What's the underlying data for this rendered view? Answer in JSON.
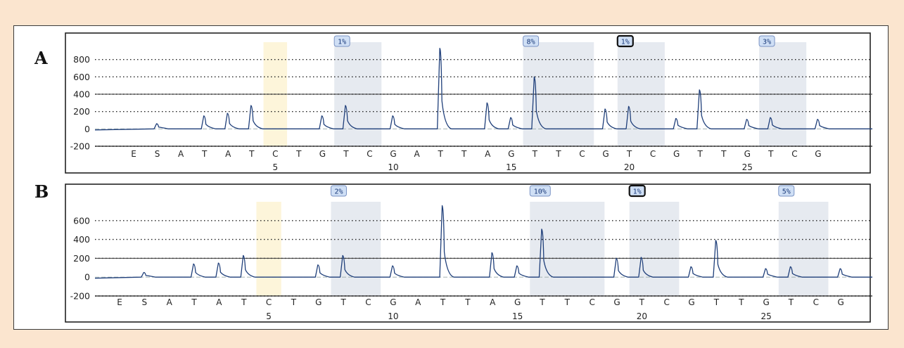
{
  "colors": {
    "page_bg": "#fbe5cf",
    "trace": "#1f3f7a",
    "gray_shade": "#e6eaf0",
    "yellow_shade": "#fdf5da",
    "badge_fill": "#cfdff5",
    "badge_border": "#7a93c4"
  },
  "panels": [
    {
      "letter": "A",
      "dispensation": [
        "E",
        "S",
        "A",
        "T",
        "A",
        "T",
        "C",
        "T",
        "G",
        "T",
        "C",
        "G",
        "A",
        "T",
        "T",
        "A",
        "G",
        "T",
        "T",
        "C",
        "G",
        "T",
        "C",
        "G",
        "T",
        "T",
        "G",
        "T",
        "C",
        "G"
      ],
      "position_labels": [
        {
          "pos": 5,
          "label": "5"
        },
        {
          "pos": 10,
          "label": "10"
        },
        {
          "pos": 15,
          "label": "15"
        },
        {
          "pos": 20,
          "label": "20"
        },
        {
          "pos": 25,
          "label": "25"
        }
      ],
      "yellow_region": {
        "start": 6,
        "end": 6
      },
      "cpg_regions": [
        {
          "start": 9,
          "end": 10,
          "badge": "1%",
          "emphasized": false
        },
        {
          "start": 17,
          "end": 19,
          "badge": "8%",
          "emphasized": false
        },
        {
          "start": 21,
          "end": 22,
          "badge": "1%",
          "emphasized": true
        },
        {
          "start": 27,
          "end": 28,
          "badge": "3%",
          "emphasized": false
        }
      ],
      "chart_data": {
        "type": "line",
        "title": "",
        "xlabel": "",
        "ylabel": "",
        "ylim": [
          -200,
          1000
        ],
        "yticks": [
          -200,
          0,
          200,
          400,
          600,
          800
        ],
        "dotted_grid": [
          -200,
          200,
          400,
          600,
          800
        ],
        "solid_grid": [
          400
        ],
        "peaks": [
          {
            "x": 1,
            "y": 60
          },
          {
            "x": 3,
            "y": 150
          },
          {
            "x": 4,
            "y": 180
          },
          {
            "x": 5,
            "y": 270
          },
          {
            "x": 8,
            "y": 150
          },
          {
            "x": 9,
            "y": 270
          },
          {
            "x": 11,
            "y": 150
          },
          {
            "x": 13,
            "y": 930
          },
          {
            "x": 15,
            "y": 300
          },
          {
            "x": 16,
            "y": 130
          },
          {
            "x": 17,
            "y": 600
          },
          {
            "x": 20,
            "y": 230
          },
          {
            "x": 21,
            "y": 260
          },
          {
            "x": 23,
            "y": 120
          },
          {
            "x": 24,
            "y": 450
          },
          {
            "x": 26,
            "y": 110
          },
          {
            "x": 27,
            "y": 130
          },
          {
            "x": 29,
            "y": 110
          }
        ]
      }
    },
    {
      "letter": "B",
      "dispensation": [
        "E",
        "S",
        "A",
        "T",
        "A",
        "T",
        "C",
        "T",
        "G",
        "T",
        "C",
        "G",
        "A",
        "T",
        "T",
        "A",
        "G",
        "T",
        "T",
        "C",
        "G",
        "T",
        "C",
        "G",
        "T",
        "T",
        "G",
        "T",
        "C",
        "G"
      ],
      "position_labels": [
        {
          "pos": 5,
          "label": "5"
        },
        {
          "pos": 10,
          "label": "10"
        },
        {
          "pos": 15,
          "label": "15"
        },
        {
          "pos": 20,
          "label": "20"
        },
        {
          "pos": 25,
          "label": "25"
        }
      ],
      "yellow_region": {
        "start": 6,
        "end": 6
      },
      "cpg_regions": [
        {
          "start": 9,
          "end": 10,
          "badge": "2%",
          "emphasized": false
        },
        {
          "start": 17,
          "end": 19,
          "badge": "10%",
          "emphasized": false
        },
        {
          "start": 21,
          "end": 22,
          "badge": "1%",
          "emphasized": true
        },
        {
          "start": 27,
          "end": 28,
          "badge": "5%",
          "emphasized": false
        }
      ],
      "chart_data": {
        "type": "line",
        "title": "",
        "xlabel": "",
        "ylabel": "",
        "ylim": [
          -200,
          800
        ],
        "yticks": [
          -200,
          0,
          200,
          400,
          600
        ],
        "dotted_grid": [
          -200,
          200,
          400,
          600
        ],
        "solid_grid": [
          200
        ],
        "peaks": [
          {
            "x": 1,
            "y": 50
          },
          {
            "x": 3,
            "y": 140
          },
          {
            "x": 4,
            "y": 150
          },
          {
            "x": 5,
            "y": 230
          },
          {
            "x": 8,
            "y": 130
          },
          {
            "x": 9,
            "y": 230
          },
          {
            "x": 11,
            "y": 120
          },
          {
            "x": 13,
            "y": 760
          },
          {
            "x": 15,
            "y": 260
          },
          {
            "x": 16,
            "y": 120
          },
          {
            "x": 17,
            "y": 510
          },
          {
            "x": 20,
            "y": 200
          },
          {
            "x": 21,
            "y": 210
          },
          {
            "x": 23,
            "y": 110
          },
          {
            "x": 24,
            "y": 390
          },
          {
            "x": 26,
            "y": 90
          },
          {
            "x": 27,
            "y": 110
          },
          {
            "x": 29,
            "y": 90
          }
        ]
      }
    }
  ]
}
